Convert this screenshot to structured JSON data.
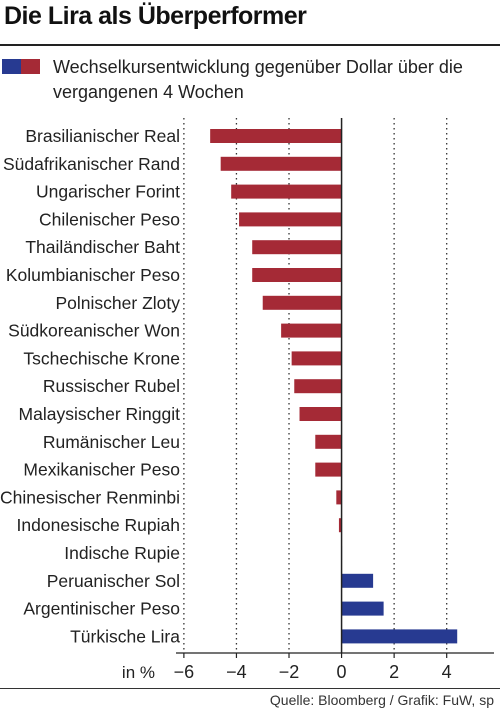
{
  "header": {
    "title": "Die Lira als Überperformer",
    "legend_text": "Wechselkursentwicklung gegenüber Dollar über die vergangenen 4 Wochen",
    "source": "Quelle: Bloomberg / Grafik: FuW, sp"
  },
  "colors": {
    "negative": "#a52a36",
    "positive": "#273a91"
  },
  "chart_data": {
    "type": "bar",
    "orientation": "horizontal",
    "categories": [
      "Brasilianischer Real",
      "Südafrikanischer Rand",
      "Ungarischer Forint",
      "Chilenischer Peso",
      "Thailändischer Baht",
      "Kolumbianischer Peso",
      "Polnischer Zloty",
      "Südkoreanischer Won",
      "Tschechische Krone",
      "Russischer Rubel",
      "Malaysischer Ringgit",
      "Rumänischer Leu",
      "Mexikanischer Peso",
      "Chinesischer Renminbi",
      "Indonesische Rupiah",
      "Indische Rupie",
      "Peruanischer Sol",
      "Argentinischer Peso",
      "Türkische Lira"
    ],
    "values": [
      -5.0,
      -4.6,
      -4.2,
      -3.9,
      -3.4,
      -3.4,
      -3.0,
      -2.3,
      -1.9,
      -1.8,
      -1.6,
      -1.0,
      -1.0,
      -0.2,
      -0.1,
      0.0,
      1.2,
      1.6,
      4.4
    ],
    "xlim": [
      -6.3,
      5.8
    ],
    "xticks": [
      -6,
      -4,
      -2,
      0,
      2,
      4
    ],
    "xtick_labels": [
      "−6",
      "−4",
      "−2",
      "0",
      "2",
      "4"
    ],
    "xunit_label": "in %",
    "grid": "vertical dotted",
    "legend": "top"
  }
}
